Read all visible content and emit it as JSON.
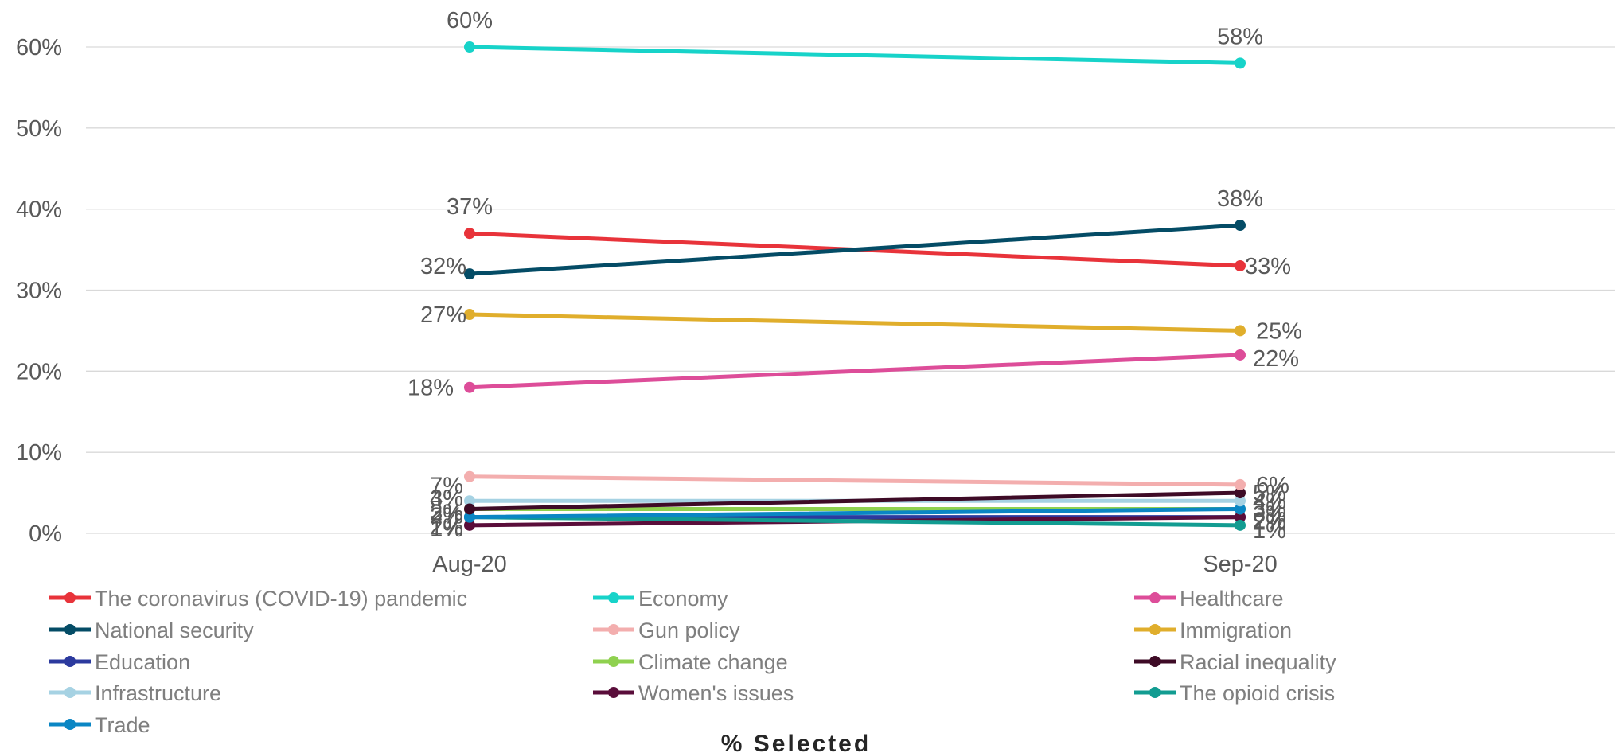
{
  "chart_data": {
    "type": "line",
    "x": [
      "Aug-20",
      "Sep-20"
    ],
    "xlabel": "% Selected",
    "ylabel": "",
    "ylim": [
      0,
      60
    ],
    "yticks": [
      "0%",
      "10%",
      "20%",
      "30%",
      "40%",
      "50%",
      "60%"
    ],
    "grid": true,
    "legend_position": "bottom",
    "series": [
      {
        "name": "The coronavirus (COVID-19) pandemic",
        "values": [
          37,
          33
        ],
        "labels": [
          "37%",
          "33%"
        ],
        "color": "#e8333a"
      },
      {
        "name": "Economy",
        "values": [
          60,
          58
        ],
        "labels": [
          "60%",
          "58%"
        ],
        "color": "#17d3c9"
      },
      {
        "name": "Healthcare",
        "values": [
          18,
          22
        ],
        "labels": [
          "18%",
          "22%"
        ],
        "color": "#dd4d99"
      },
      {
        "name": "National security",
        "values": [
          32,
          38
        ],
        "labels": [
          "32%",
          "38%"
        ],
        "color": "#044c66"
      },
      {
        "name": "Gun policy",
        "values": [
          7,
          6
        ],
        "labels": [
          "7%",
          "6%"
        ],
        "color": "#f3aeae"
      },
      {
        "name": "Immigration",
        "values": [
          27,
          25
        ],
        "labels": [
          "27%",
          "25%"
        ],
        "color": "#e0ae2c"
      },
      {
        "name": "Education",
        "values": [
          2,
          2
        ],
        "labels": [
          "2%",
          "2%"
        ],
        "color": "#2c3a9e"
      },
      {
        "name": "Climate change",
        "values": [
          3,
          3
        ],
        "labels": [
          "3%",
          "3%"
        ],
        "color": "#8fd14f"
      },
      {
        "name": "Racial inequality",
        "values": [
          3,
          5
        ],
        "labels": [
          "3%",
          "5%"
        ],
        "color": "#3e0b26"
      },
      {
        "name": "Infrastructure",
        "values": [
          4,
          4
        ],
        "labels": [
          "4%",
          "4%"
        ],
        "color": "#a6d2e3"
      },
      {
        "name": "Women's issues",
        "values": [
          1,
          2
        ],
        "labels": [
          "1%",
          "2%"
        ],
        "color": "#5a0d3a"
      },
      {
        "name": "The opioid crisis",
        "values": [
          2,
          1
        ],
        "labels": [
          "2%",
          "1%"
        ],
        "color": "#129c91"
      },
      {
        "name": "Trade",
        "values": [
          2,
          3
        ],
        "labels": [
          "2%",
          "3%"
        ],
        "color": "#0a86c4"
      }
    ]
  }
}
